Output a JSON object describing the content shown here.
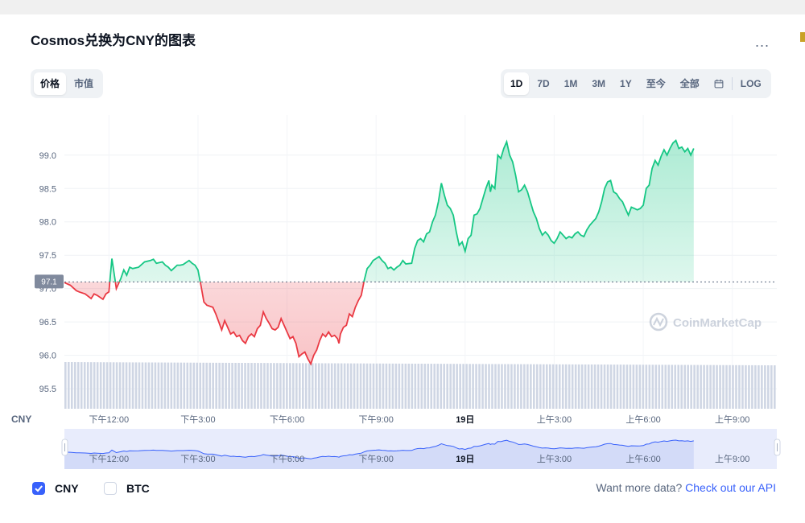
{
  "header": {
    "title": "Cosmos兑换为CNY的图表",
    "more_label": "..."
  },
  "left_tabs": [
    {
      "label": "价格",
      "active": true
    },
    {
      "label": "市值",
      "active": false
    }
  ],
  "range_tabs": [
    {
      "label": "1D",
      "active": true
    },
    {
      "label": "7D",
      "active": false
    },
    {
      "label": "1M",
      "active": false
    },
    {
      "label": "3M",
      "active": false
    },
    {
      "label": "1Y",
      "active": false
    },
    {
      "label": "至今",
      "active": false
    },
    {
      "label": "全部",
      "active": false
    }
  ],
  "calendar_icon": "calendar-icon",
  "log_label": "LOG",
  "watermark": "CoinMarketCap",
  "currency_label": "CNY",
  "current_price_label": "97.1",
  "checkboxes": [
    {
      "label": "CNY",
      "checked": true
    },
    {
      "label": "BTC",
      "checked": false
    }
  ],
  "footer": {
    "text": "Want more data?",
    "link": "Check out our API"
  },
  "colors": {
    "up": "#16c784",
    "down": "#ea3943",
    "accent": "#3861fb",
    "volume": "#cfd6e4"
  },
  "chart_data": {
    "type": "line",
    "baseline": 97.1,
    "ylim": [
      95.2,
      99.6
    ],
    "y_ticks": [
      95.5,
      96.0,
      96.5,
      97.0,
      97.5,
      98.0,
      98.5,
      99.0
    ],
    "x_range": [
      10.5,
      34.5
    ],
    "x_ticks": [
      {
        "x": 12,
        "label": "下午12:00",
        "bold": false
      },
      {
        "x": 15,
        "label": "下午3:00",
        "bold": false
      },
      {
        "x": 18,
        "label": "下午6:00",
        "bold": false
      },
      {
        "x": 21,
        "label": "下午9:00",
        "bold": false
      },
      {
        "x": 24,
        "label": "19日",
        "bold": true
      },
      {
        "x": 27,
        "label": "上午3:00",
        "bold": false
      },
      {
        "x": 30,
        "label": "上午6:00",
        "bold": false
      },
      {
        "x": 33,
        "label": "上午9:00",
        "bold": false
      }
    ],
    "price": [
      [
        10.5,
        97.09
      ],
      [
        10.7,
        97.05
      ],
      [
        10.9,
        96.97
      ],
      [
        11.0,
        96.95
      ],
      [
        11.2,
        96.92
      ],
      [
        11.4,
        96.85
      ],
      [
        11.5,
        96.92
      ],
      [
        11.6,
        96.9
      ],
      [
        11.8,
        96.84
      ],
      [
        11.9,
        96.92
      ],
      [
        12.0,
        96.95
      ],
      [
        12.1,
        97.45
      ],
      [
        12.2,
        97.15
      ],
      [
        12.25,
        97.0
      ],
      [
        12.35,
        97.1
      ],
      [
        12.4,
        97.15
      ],
      [
        12.5,
        97.28
      ],
      [
        12.6,
        97.2
      ],
      [
        12.7,
        97.32
      ],
      [
        12.8,
        97.3
      ],
      [
        13.0,
        97.32
      ],
      [
        13.2,
        97.4
      ],
      [
        13.4,
        97.42
      ],
      [
        13.5,
        97.44
      ],
      [
        13.6,
        97.38
      ],
      [
        13.8,
        97.4
      ],
      [
        13.9,
        97.35
      ],
      [
        14.0,
        97.32
      ],
      [
        14.1,
        97.27
      ],
      [
        14.3,
        97.35
      ],
      [
        14.4,
        97.35
      ],
      [
        14.5,
        97.36
      ],
      [
        14.7,
        97.42
      ],
      [
        14.8,
        97.38
      ],
      [
        14.9,
        97.35
      ],
      [
        15.0,
        97.28
      ],
      [
        15.1,
        97.05
      ],
      [
        15.2,
        96.8
      ],
      [
        15.3,
        96.75
      ],
      [
        15.5,
        96.72
      ],
      [
        15.6,
        96.62
      ],
      [
        15.7,
        96.5
      ],
      [
        15.8,
        96.38
      ],
      [
        15.9,
        96.52
      ],
      [
        16.0,
        96.42
      ],
      [
        16.1,
        96.32
      ],
      [
        16.2,
        96.35
      ],
      [
        16.3,
        96.28
      ],
      [
        16.4,
        96.3
      ],
      [
        16.5,
        96.22
      ],
      [
        16.6,
        96.18
      ],
      [
        16.7,
        96.28
      ],
      [
        16.8,
        96.32
      ],
      [
        16.9,
        96.28
      ],
      [
        17.0,
        96.4
      ],
      [
        17.1,
        96.45
      ],
      [
        17.2,
        96.65
      ],
      [
        17.3,
        96.55
      ],
      [
        17.4,
        96.48
      ],
      [
        17.5,
        96.4
      ],
      [
        17.6,
        96.38
      ],
      [
        17.7,
        96.42
      ],
      [
        17.8,
        96.55
      ],
      [
        17.9,
        96.45
      ],
      [
        18.0,
        96.35
      ],
      [
        18.1,
        96.25
      ],
      [
        18.2,
        96.28
      ],
      [
        18.3,
        96.18
      ],
      [
        18.4,
        95.98
      ],
      [
        18.5,
        96.02
      ],
      [
        18.6,
        96.05
      ],
      [
        18.7,
        95.95
      ],
      [
        18.8,
        95.87
      ],
      [
        18.9,
        96.0
      ],
      [
        19.0,
        96.08
      ],
      [
        19.1,
        96.22
      ],
      [
        19.2,
        96.32
      ],
      [
        19.3,
        96.28
      ],
      [
        19.4,
        96.35
      ],
      [
        19.5,
        96.28
      ],
      [
        19.6,
        96.3
      ],
      [
        19.7,
        96.25
      ],
      [
        19.75,
        96.18
      ],
      [
        19.8,
        96.32
      ],
      [
        19.9,
        96.42
      ],
      [
        20.0,
        96.45
      ],
      [
        20.1,
        96.62
      ],
      [
        20.2,
        96.58
      ],
      [
        20.3,
        96.72
      ],
      [
        20.4,
        96.82
      ],
      [
        20.5,
        96.9
      ],
      [
        20.6,
        97.12
      ],
      [
        20.7,
        97.3
      ],
      [
        20.8,
        97.35
      ],
      [
        20.9,
        97.42
      ],
      [
        21.0,
        97.45
      ],
      [
        21.1,
        97.48
      ],
      [
        21.2,
        97.42
      ],
      [
        21.3,
        97.38
      ],
      [
        21.4,
        97.3
      ],
      [
        21.5,
        97.32
      ],
      [
        21.6,
        97.28
      ],
      [
        21.7,
        97.32
      ],
      [
        21.8,
        97.35
      ],
      [
        21.9,
        97.42
      ],
      [
        22.0,
        97.37
      ],
      [
        22.2,
        97.38
      ],
      [
        22.3,
        97.6
      ],
      [
        22.4,
        97.72
      ],
      [
        22.5,
        97.75
      ],
      [
        22.6,
        97.7
      ],
      [
        22.7,
        97.82
      ],
      [
        22.8,
        97.85
      ],
      [
        22.9,
        98.0
      ],
      [
        23.0,
        98.1
      ],
      [
        23.1,
        98.3
      ],
      [
        23.2,
        98.58
      ],
      [
        23.3,
        98.4
      ],
      [
        23.4,
        98.25
      ],
      [
        23.5,
        98.2
      ],
      [
        23.6,
        98.1
      ],
      [
        23.7,
        97.85
      ],
      [
        23.8,
        97.65
      ],
      [
        23.9,
        97.7
      ],
      [
        24.0,
        97.56
      ],
      [
        24.1,
        97.75
      ],
      [
        24.2,
        97.8
      ],
      [
        24.3,
        98.1
      ],
      [
        24.4,
        98.12
      ],
      [
        24.5,
        98.2
      ],
      [
        24.6,
        98.35
      ],
      [
        24.7,
        98.5
      ],
      [
        24.8,
        98.62
      ],
      [
        24.85,
        98.45
      ],
      [
        24.9,
        98.55
      ],
      [
        25.0,
        98.5
      ],
      [
        25.1,
        99.0
      ],
      [
        25.2,
        98.95
      ],
      [
        25.3,
        99.1
      ],
      [
        25.4,
        99.2
      ],
      [
        25.5,
        99.0
      ],
      [
        25.6,
        98.9
      ],
      [
        25.7,
        98.7
      ],
      [
        25.8,
        98.45
      ],
      [
        25.9,
        98.48
      ],
      [
        26.0,
        98.55
      ],
      [
        26.1,
        98.45
      ],
      [
        26.2,
        98.3
      ],
      [
        26.3,
        98.15
      ],
      [
        26.4,
        98.05
      ],
      [
        26.5,
        97.9
      ],
      [
        26.6,
        97.8
      ],
      [
        26.7,
        97.85
      ],
      [
        26.8,
        97.8
      ],
      [
        26.9,
        97.72
      ],
      [
        27.0,
        97.68
      ],
      [
        27.1,
        97.75
      ],
      [
        27.2,
        97.85
      ],
      [
        27.3,
        97.8
      ],
      [
        27.4,
        97.75
      ],
      [
        27.5,
        97.78
      ],
      [
        27.6,
        97.76
      ],
      [
        27.7,
        97.82
      ],
      [
        27.8,
        97.85
      ],
      [
        27.9,
        97.8
      ],
      [
        28.0,
        97.78
      ],
      [
        28.1,
        97.88
      ],
      [
        28.2,
        97.95
      ],
      [
        28.3,
        98.0
      ],
      [
        28.4,
        98.05
      ],
      [
        28.5,
        98.15
      ],
      [
        28.6,
        98.3
      ],
      [
        28.7,
        98.5
      ],
      [
        28.8,
        98.6
      ],
      [
        28.9,
        98.62
      ],
      [
        29.0,
        98.45
      ],
      [
        29.1,
        98.42
      ],
      [
        29.2,
        98.35
      ],
      [
        29.3,
        98.3
      ],
      [
        29.4,
        98.2
      ],
      [
        29.5,
        98.1
      ],
      [
        29.6,
        98.22
      ],
      [
        29.7,
        98.2
      ],
      [
        29.8,
        98.18
      ],
      [
        29.9,
        98.2
      ],
      [
        30.0,
        98.25
      ],
      [
        30.1,
        98.5
      ],
      [
        30.2,
        98.55
      ],
      [
        30.3,
        98.8
      ],
      [
        30.4,
        98.92
      ],
      [
        30.5,
        98.85
      ],
      [
        30.6,
        98.98
      ],
      [
        30.7,
        99.08
      ],
      [
        30.8,
        99.0
      ],
      [
        30.9,
        99.1
      ],
      [
        31.0,
        99.18
      ],
      [
        31.1,
        99.22
      ],
      [
        31.2,
        99.1
      ],
      [
        31.3,
        99.12
      ],
      [
        31.4,
        99.05
      ],
      [
        31.5,
        99.1
      ],
      [
        31.6,
        99.0
      ],
      [
        31.7,
        99.1
      ]
    ],
    "volume_range": [
      0,
      100
    ],
    "volume_start": 100,
    "volume_end": 93
  }
}
